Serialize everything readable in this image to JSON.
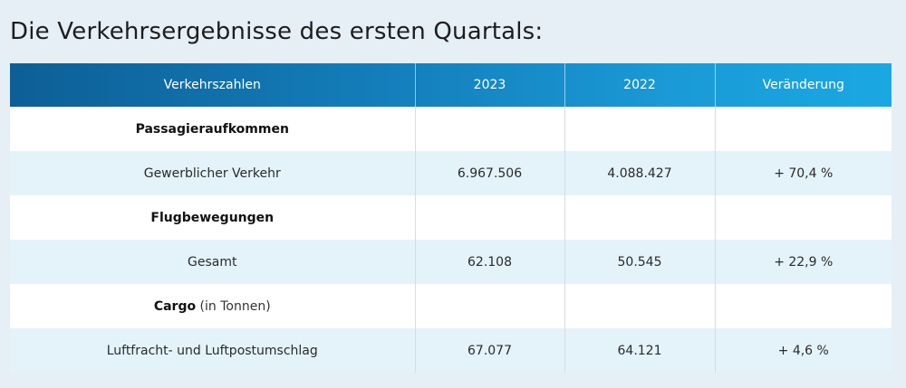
{
  "page": {
    "title": "Die Verkehrsergebnisse des ersten Quartals:"
  },
  "table": {
    "headers": [
      "Verkehrszahlen",
      "2023",
      "2022",
      "Veränderung"
    ],
    "rows": [
      {
        "label": "Passagieraufkommen",
        "note": "",
        "v2023": "",
        "v2022": "",
        "change": ""
      },
      {
        "label": "Gewerblicher Verkehr",
        "v2023": "6.967.506",
        "v2022": "4.088.427",
        "change": "+ 70,4 %"
      },
      {
        "label": "Flugbewegungen",
        "note": "",
        "v2023": "",
        "v2022": "",
        "change": ""
      },
      {
        "label": "Gesamt",
        "v2023": "62.108",
        "v2022": "50.545",
        "change": "+ 22,9 %"
      },
      {
        "label": "Cargo",
        "note": "(in Tonnen)",
        "v2023": "",
        "v2022": "",
        "change": ""
      },
      {
        "label": "Luftfracht- und Luftpostumschlag",
        "v2023": "67.077",
        "v2022": "64.121",
        "change": "+ 4,6 %"
      }
    ]
  },
  "colors": {
    "header_start": "#0d5f96",
    "header_end": "#1aa8e2",
    "row_alt": "#e4f3fa",
    "background": "#e6eef6"
  }
}
